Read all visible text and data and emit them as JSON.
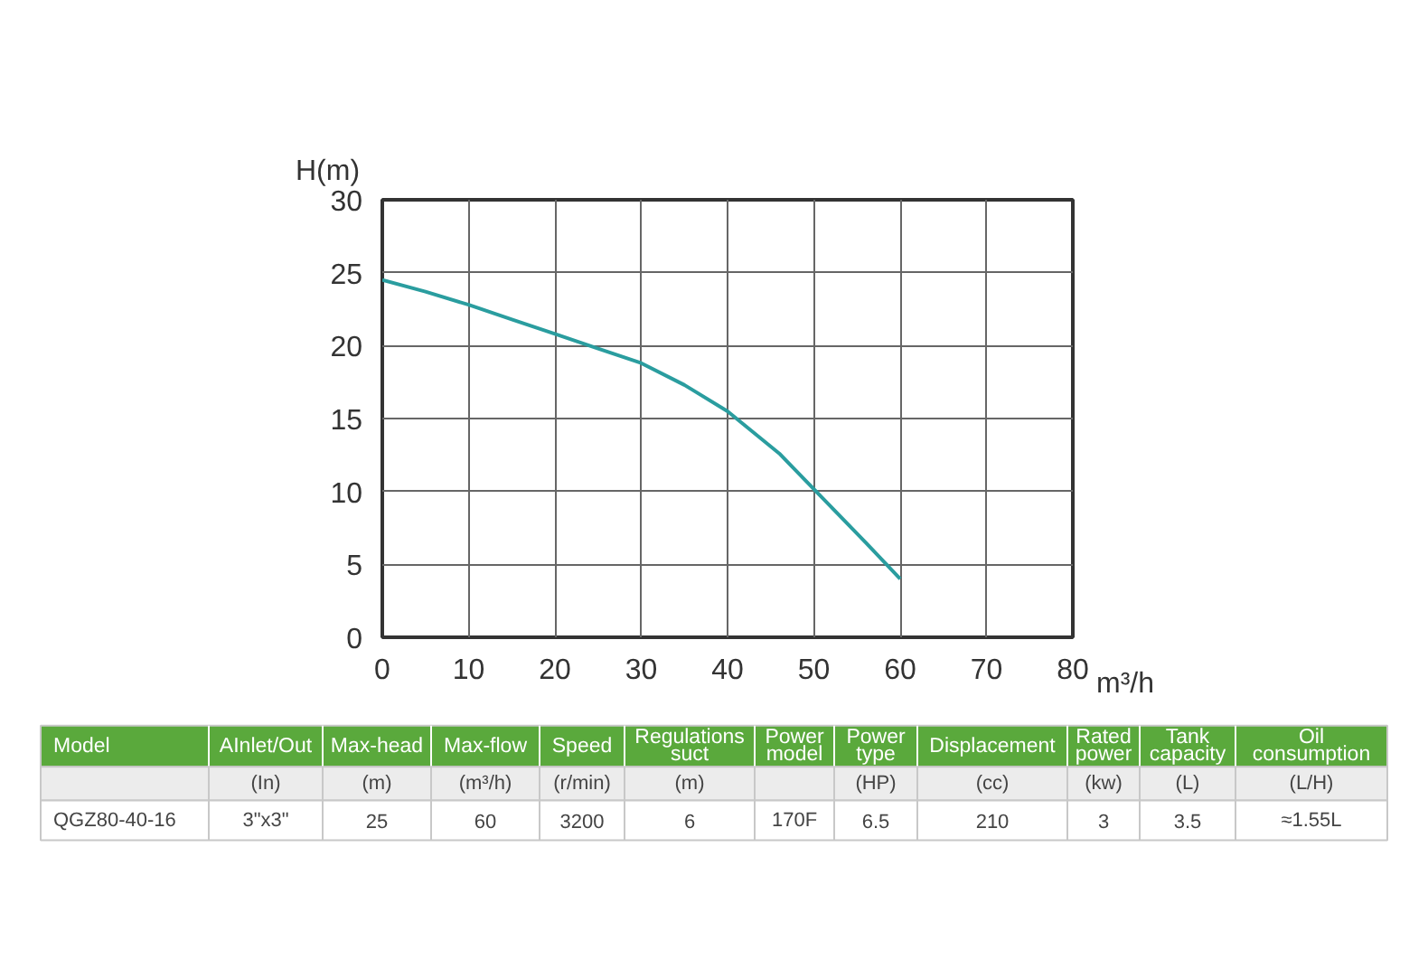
{
  "chart_data": {
    "type": "line",
    "ylabel": "H(m)",
    "xlabel": "m³/h",
    "x": [
      0,
      5,
      10,
      15,
      20,
      25,
      30,
      35,
      40,
      46,
      56,
      60
    ],
    "series": [
      {
        "color": "#2a9d9f",
        "values": [
          24.5,
          23.7,
          22.8,
          21.8,
          20.8,
          19.8,
          18.8,
          17.3,
          15.5,
          12.6,
          6.5,
          4
        ]
      }
    ],
    "xlim": [
      0,
      80
    ],
    "xticks": [
      0,
      10,
      20,
      30,
      40,
      50,
      60,
      70,
      80
    ],
    "ylim": [
      0,
      30
    ],
    "yticks": [
      0,
      5,
      10,
      15,
      20,
      25,
      30
    ],
    "grid": true,
    "annotations": [
      "Model",
      "AInlet/Out",
      "Max-head",
      "Max-flow",
      "Speed",
      "Regulations\nsuct",
      "Power\nmodel",
      "Power\ntype",
      "Displacement",
      "Rated\npower",
      "Tank\ncapacity",
      "Oil\nconsumption",
      null,
      "(In)",
      "(m)",
      "(m³/h)",
      "(r/min)",
      "(m)",
      null,
      "(HP)",
      "(cc)",
      "(kw)",
      "(L)",
      "(L/H)",
      "QGZ80-40-16",
      "3\"x3\"",
      "25",
      "60",
      "3200",
      "6",
      "170F",
      "6.5",
      "210",
      "3",
      "3.5",
      "≈1.55L"
    ]
  }
}
